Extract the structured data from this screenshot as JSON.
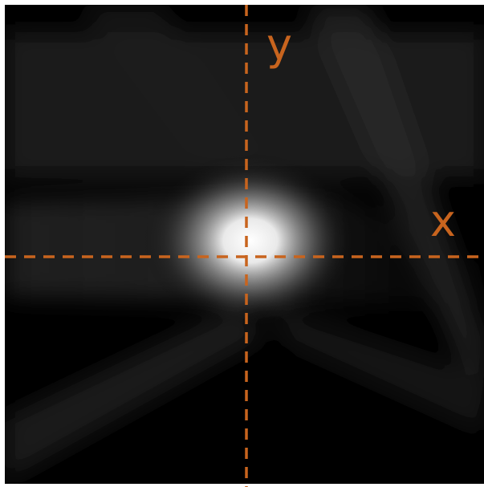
{
  "labels": {
    "y": "y",
    "x": "x"
  }
}
